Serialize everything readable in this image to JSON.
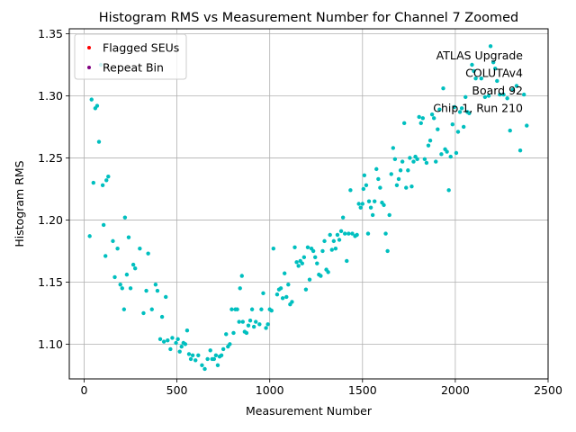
{
  "chart_data": {
    "type": "scatter",
    "title": "Histogram RMS vs Measurement Number for Channel 7 Zoomed",
    "xlabel": "Measurement Number",
    "ylabel": "Histogram RMS",
    "xlim": [
      -80,
      2500
    ],
    "ylim": [
      1.072,
      1.354
    ],
    "xticks": [
      0,
      500,
      1000,
      1500,
      2000,
      2500
    ],
    "yticks": [
      1.1,
      1.15,
      1.2,
      1.25,
      1.3,
      1.35
    ],
    "xtick_labels": [
      "0",
      "500",
      "1000",
      "1500",
      "2000",
      "2500"
    ],
    "ytick_labels": [
      "1.10",
      "1.15",
      "1.20",
      "1.25",
      "1.30",
      "1.35"
    ],
    "grid": true,
    "legend_placement": "top-left",
    "annotation_lines": [
      "ATLAS Upgrade",
      "COLUTAv4",
      "Board 92",
      "Chip 1, Run 210"
    ],
    "colors": {
      "main": "#00bfbf",
      "flagged": "#ff0000",
      "repeat": "#800080"
    },
    "series": [
      {
        "name": "",
        "color": "#00bfbf",
        "points": [
          [
            30,
            1.187
          ],
          [
            40,
            1.297
          ],
          [
            50,
            1.23
          ],
          [
            60,
            1.29
          ],
          [
            70,
            1.292
          ],
          [
            80,
            1.263
          ],
          [
            90,
            1.325
          ],
          [
            100,
            1.228
          ],
          [
            105,
            1.196
          ],
          [
            115,
            1.171
          ],
          [
            120,
            1.232
          ],
          [
            130,
            1.235
          ],
          [
            155,
            1.183
          ],
          [
            165,
            1.154
          ],
          [
            180,
            1.177
          ],
          [
            195,
            1.148
          ],
          [
            205,
            1.145
          ],
          [
            215,
            1.128
          ],
          [
            220,
            1.202
          ],
          [
            230,
            1.156
          ],
          [
            240,
            1.186
          ],
          [
            250,
            1.145
          ],
          [
            265,
            1.164
          ],
          [
            275,
            1.161
          ],
          [
            300,
            1.177
          ],
          [
            320,
            1.125
          ],
          [
            335,
            1.143
          ],
          [
            345,
            1.173
          ],
          [
            365,
            1.128
          ],
          [
            385,
            1.148
          ],
          [
            395,
            1.143
          ],
          [
            410,
            1.104
          ],
          [
            420,
            1.122
          ],
          [
            430,
            1.102
          ],
          [
            440,
            1.138
          ],
          [
            450,
            1.103
          ],
          [
            465,
            1.096
          ],
          [
            475,
            1.105
          ],
          [
            495,
            1.101
          ],
          [
            505,
            1.104
          ],
          [
            515,
            1.094
          ],
          [
            525,
            1.098
          ],
          [
            535,
            1.101
          ],
          [
            545,
            1.1
          ],
          [
            555,
            1.111
          ],
          [
            565,
            1.092
          ],
          [
            575,
            1.088
          ],
          [
            585,
            1.091
          ],
          [
            600,
            1.087
          ],
          [
            615,
            1.091
          ],
          [
            635,
            1.083
          ],
          [
            650,
            1.08
          ],
          [
            665,
            1.088
          ],
          [
            680,
            1.095
          ],
          [
            690,
            1.088
          ],
          [
            700,
            1.088
          ],
          [
            710,
            1.091
          ],
          [
            720,
            1.083
          ],
          [
            730,
            1.09
          ],
          [
            740,
            1.091
          ],
          [
            750,
            1.096
          ],
          [
            765,
            1.108
          ],
          [
            775,
            1.098
          ],
          [
            785,
            1.1
          ],
          [
            795,
            1.128
          ],
          [
            805,
            1.109
          ],
          [
            815,
            1.128
          ],
          [
            825,
            1.128
          ],
          [
            835,
            1.118
          ],
          [
            840,
            1.145
          ],
          [
            850,
            1.155
          ],
          [
            855,
            1.118
          ],
          [
            865,
            1.11
          ],
          [
            875,
            1.109
          ],
          [
            885,
            1.115
          ],
          [
            895,
            1.119
          ],
          [
            905,
            1.128
          ],
          [
            915,
            1.114
          ],
          [
            925,
            1.118
          ],
          [
            945,
            1.116
          ],
          [
            955,
            1.128
          ],
          [
            965,
            1.141
          ],
          [
            980,
            1.113
          ],
          [
            990,
            1.116
          ],
          [
            1000,
            1.128
          ],
          [
            1010,
            1.127
          ],
          [
            1020,
            1.177
          ],
          [
            1040,
            1.14
          ],
          [
            1050,
            1.144
          ],
          [
            1060,
            1.145
          ],
          [
            1070,
            1.137
          ],
          [
            1080,
            1.157
          ],
          [
            1090,
            1.138
          ],
          [
            1100,
            1.148
          ],
          [
            1110,
            1.132
          ],
          [
            1120,
            1.134
          ],
          [
            1135,
            1.178
          ],
          [
            1145,
            1.166
          ],
          [
            1155,
            1.163
          ],
          [
            1165,
            1.167
          ],
          [
            1175,
            1.165
          ],
          [
            1185,
            1.17
          ],
          [
            1195,
            1.144
          ],
          [
            1205,
            1.178
          ],
          [
            1215,
            1.152
          ],
          [
            1225,
            1.177
          ],
          [
            1235,
            1.175
          ],
          [
            1245,
            1.17
          ],
          [
            1255,
            1.165
          ],
          [
            1265,
            1.156
          ],
          [
            1275,
            1.155
          ],
          [
            1285,
            1.175
          ],
          [
            1295,
            1.183
          ],
          [
            1305,
            1.16
          ],
          [
            1315,
            1.158
          ],
          [
            1325,
            1.188
          ],
          [
            1335,
            1.176
          ],
          [
            1345,
            1.183
          ],
          [
            1355,
            1.177
          ],
          [
            1365,
            1.188
          ],
          [
            1375,
            1.184
          ],
          [
            1385,
            1.191
          ],
          [
            1395,
            1.202
          ],
          [
            1405,
            1.189
          ],
          [
            1415,
            1.167
          ],
          [
            1425,
            1.189
          ],
          [
            1435,
            1.224
          ],
          [
            1445,
            1.189
          ],
          [
            1460,
            1.187
          ],
          [
            1470,
            1.188
          ],
          [
            1480,
            1.213
          ],
          [
            1490,
            1.21
          ],
          [
            1500,
            1.213
          ],
          [
            1505,
            1.225
          ],
          [
            1510,
            1.236
          ],
          [
            1520,
            1.228
          ],
          [
            1530,
            1.189
          ],
          [
            1535,
            1.215
          ],
          [
            1545,
            1.21
          ],
          [
            1555,
            1.204
          ],
          [
            1565,
            1.215
          ],
          [
            1575,
            1.241
          ],
          [
            1585,
            1.233
          ],
          [
            1595,
            1.226
          ],
          [
            1605,
            1.214
          ],
          [
            1615,
            1.212
          ],
          [
            1625,
            1.189
          ],
          [
            1635,
            1.175
          ],
          [
            1645,
            1.204
          ],
          [
            1655,
            1.237
          ],
          [
            1665,
            1.258
          ],
          [
            1675,
            1.249
          ],
          [
            1685,
            1.228
          ],
          [
            1695,
            1.233
          ],
          [
            1705,
            1.24
          ],
          [
            1715,
            1.247
          ],
          [
            1725,
            1.278
          ],
          [
            1735,
            1.226
          ],
          [
            1745,
            1.24
          ],
          [
            1755,
            1.25
          ],
          [
            1765,
            1.227
          ],
          [
            1775,
            1.247
          ],
          [
            1785,
            1.251
          ],
          [
            1795,
            1.249
          ],
          [
            1805,
            1.283
          ],
          [
            1815,
            1.278
          ],
          [
            1825,
            1.282
          ],
          [
            1835,
            1.249
          ],
          [
            1845,
            1.246
          ],
          [
            1855,
            1.26
          ],
          [
            1865,
            1.264
          ],
          [
            1875,
            1.285
          ],
          [
            1885,
            1.282
          ],
          [
            1895,
            1.247
          ],
          [
            1905,
            1.273
          ],
          [
            1915,
            1.289
          ],
          [
            1925,
            1.253
          ],
          [
            1935,
            1.306
          ],
          [
            1945,
            1.257
          ],
          [
            1955,
            1.255
          ],
          [
            1965,
            1.224
          ],
          [
            1975,
            1.251
          ],
          [
            1985,
            1.277
          ],
          [
            1995,
            1.291
          ],
          [
            2005,
            1.254
          ],
          [
            2015,
            1.271
          ],
          [
            2025,
            1.287
          ],
          [
            2035,
            1.29
          ],
          [
            2045,
            1.275
          ],
          [
            2055,
            1.299
          ],
          [
            2065,
            1.287
          ],
          [
            2075,
            1.286
          ],
          [
            2090,
            1.325
          ],
          [
            2100,
            1.32
          ],
          [
            2110,
            1.314
          ],
          [
            2140,
            1.314
          ],
          [
            2160,
            1.299
          ],
          [
            2180,
            1.3
          ],
          [
            2190,
            1.34
          ],
          [
            2205,
            1.327
          ],
          [
            2215,
            1.322
          ],
          [
            2225,
            1.312
          ],
          [
            2240,
            1.301
          ],
          [
            2260,
            1.301
          ],
          [
            2280,
            1.298
          ],
          [
            2295,
            1.272
          ],
          [
            2310,
            1.305
          ],
          [
            2330,
            1.308
          ],
          [
            2350,
            1.256
          ],
          [
            2370,
            1.301
          ],
          [
            2385,
            1.276
          ]
        ]
      }
    ],
    "legend": [
      {
        "label": "Flagged SEUs",
        "color": "#ff0000"
      },
      {
        "label": "Repeat Bin",
        "color": "#800080"
      }
    ]
  }
}
